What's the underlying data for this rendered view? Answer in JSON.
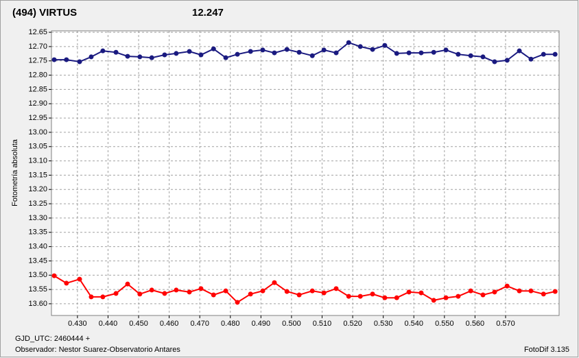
{
  "chart_data": {
    "type": "line",
    "title": "(494) VIRTUS",
    "subtitle": "12.247",
    "y_label": "Fotometría absoluta",
    "x_label": "GJD_UTC: 2460444 +",
    "footer_left": "Observador: Nestor Suarez-Observatorio Antares",
    "footer_right": "FotoDif 3.135",
    "title_color": "#ff0000",
    "subtitle_color": "#1a237e",
    "y_inverted": true,
    "grid": true,
    "xlim": [
      0.4215,
      0.5875
    ],
    "ylim": [
      12.645,
      13.641
    ],
    "xticks": [
      {
        "value": 0.43,
        "label": "0.430"
      },
      {
        "value": 0.44,
        "label": "0.440"
      },
      {
        "value": 0.45,
        "label": "0.450"
      },
      {
        "value": 0.46,
        "label": "0.460"
      },
      {
        "value": 0.47,
        "label": "0.470"
      },
      {
        "value": 0.48,
        "label": "0.480"
      },
      {
        "value": 0.49,
        "label": "0.490"
      },
      {
        "value": 0.5,
        "label": "0.500"
      },
      {
        "value": 0.51,
        "label": "0.510"
      },
      {
        "value": 0.52,
        "label": "0.520"
      },
      {
        "value": 0.53,
        "label": "0.530"
      },
      {
        "value": 0.54,
        "label": "0.540"
      },
      {
        "value": 0.55,
        "label": "0.550"
      },
      {
        "value": 0.56,
        "label": "0.560"
      },
      {
        "value": 0.57,
        "label": "0.570"
      }
    ],
    "yticks": [
      12.65,
      {
        "value": 12.7,
        "label": "12.70"
      },
      12.75,
      {
        "value": 12.8,
        "label": "12.80"
      },
      12.85,
      {
        "value": 12.9,
        "label": "12.90"
      },
      12.95,
      {
        "value": 13.0,
        "label": "13.00"
      },
      13.05,
      {
        "value": 13.1,
        "label": "13.10"
      },
      13.15,
      {
        "value": 13.2,
        "label": "13.20"
      },
      13.25,
      {
        "value": 13.3,
        "label": "13.30"
      },
      13.35,
      {
        "value": 13.4,
        "label": "13.40"
      },
      13.45,
      {
        "value": 13.5,
        "label": "13.50"
      },
      13.55,
      {
        "value": 13.6,
        "label": "13.60"
      }
    ],
    "x": [
      0.4224,
      0.4264,
      0.4307,
      0.4345,
      0.4383,
      0.4426,
      0.4464,
      0.4504,
      0.4543,
      0.4585,
      0.4623,
      0.4666,
      0.4704,
      0.4745,
      0.4785,
      0.4823,
      0.4866,
      0.4906,
      0.4944,
      0.4985,
      0.5025,
      0.5068,
      0.5106,
      0.5146,
      0.5187,
      0.5225,
      0.5265,
      0.5305,
      0.5344,
      0.5384,
      0.5424,
      0.5465,
      0.5505,
      0.5545,
      0.5586,
      0.5626,
      0.5664,
      0.5705,
      0.5745,
      0.5783,
      0.5824,
      0.5862
    ],
    "series": [
      {
        "color": "#1a1a80",
        "values": [
          12.746,
          12.746,
          12.753,
          12.736,
          12.715,
          12.72,
          12.734,
          12.736,
          12.739,
          12.729,
          12.724,
          12.717,
          12.729,
          12.708,
          12.739,
          12.727,
          12.717,
          12.712,
          12.722,
          12.71,
          12.72,
          12.732,
          12.712,
          12.722,
          12.686,
          12.7,
          12.71,
          12.696,
          12.724,
          12.722,
          12.722,
          12.72,
          12.712,
          12.727,
          12.732,
          12.736,
          12.753,
          12.748,
          12.715,
          12.744,
          12.727,
          12.727
        ]
      },
      {
        "color": "#ff0000",
        "values": [
          13.502,
          13.528,
          13.514,
          13.576,
          13.576,
          13.564,
          13.531,
          13.566,
          13.552,
          13.564,
          13.552,
          13.559,
          13.547,
          13.569,
          13.555,
          13.595,
          13.566,
          13.555,
          13.526,
          13.557,
          13.569,
          13.555,
          13.562,
          13.547,
          13.574,
          13.574,
          13.566,
          13.579,
          13.579,
          13.559,
          13.562,
          13.588,
          13.579,
          13.574,
          13.555,
          13.569,
          13.559,
          13.538,
          13.555,
          13.555,
          13.566,
          13.557
        ]
      }
    ]
  }
}
